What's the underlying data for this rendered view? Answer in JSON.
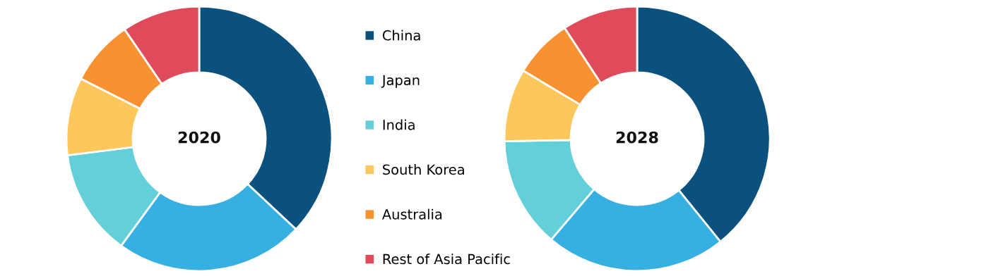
{
  "chart_data": [
    {
      "type": "donut",
      "title": "2020",
      "legend": "right",
      "categories": [
        "China",
        "Japan",
        "India",
        "South Korea",
        "Australia",
        "Rest of Asia Pacific"
      ],
      "values": [
        37,
        23,
        13,
        9.5,
        8,
        9.5
      ],
      "colors": [
        "#0a527d",
        "#36b0e2",
        "#63cfd8",
        "#fdc75c",
        "#f89130",
        "#e04b5b"
      ]
    },
    {
      "type": "donut",
      "title": "2028",
      "categories": [
        null,
        null,
        null,
        null,
        null,
        null
      ],
      "values": [
        39.2,
        22,
        13.5,
        8.9,
        7.2,
        9.2
      ],
      "colors": [
        "#0a527d",
        "#36b0e2",
        "#63cfd8",
        "#fdc75c",
        "#f89130",
        "#e04b5b"
      ]
    }
  ]
}
